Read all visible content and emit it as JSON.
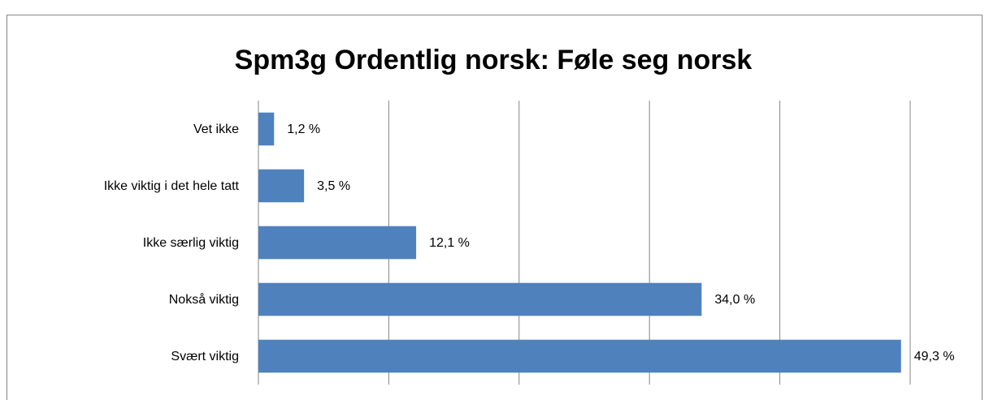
{
  "chart_data": {
    "type": "barh",
    "title": "Spm3g Ordentlig norsk: Føle seg norsk",
    "categories": [
      "Vet ikke",
      "Ikke viktig i det hele tatt",
      "Ikke særlig viktig",
      "Nokså viktig",
      "Svært viktig"
    ],
    "values": [
      1.2,
      3.5,
      12.1,
      34.0,
      49.3
    ],
    "value_labels": [
      "1,2 %",
      "3,5 %",
      "12,1 %",
      "34,0 %",
      "49,3 %"
    ],
    "color": "#4f81bd",
    "xlim": [
      0,
      50
    ],
    "xticks": [
      0,
      10,
      20,
      30,
      40,
      50
    ],
    "grid": true
  }
}
